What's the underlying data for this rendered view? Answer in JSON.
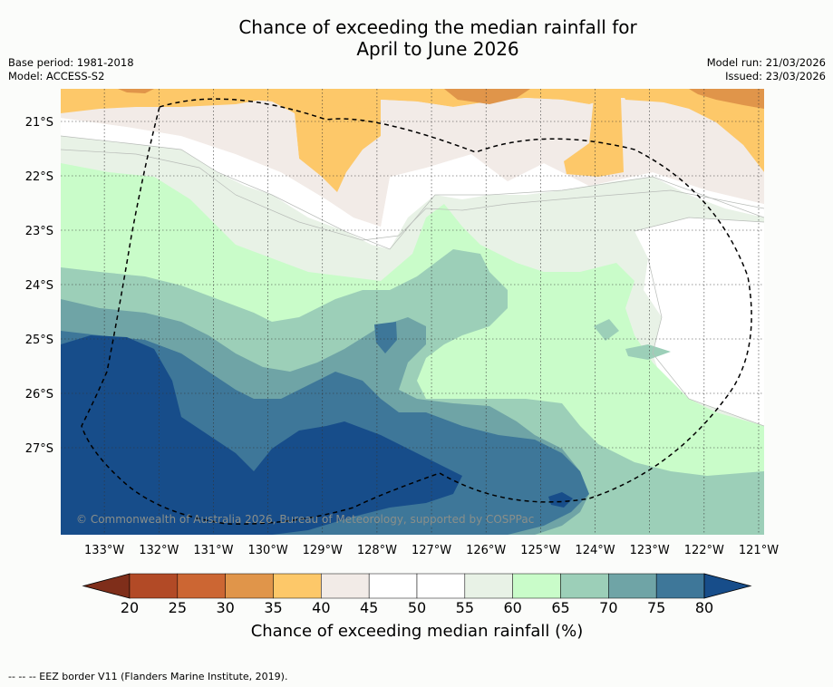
{
  "title": {
    "line1": "Chance of exceeding the median rainfall for",
    "line2": "April to June 2026"
  },
  "meta_left": {
    "base_period": "Base period: 1981-2018",
    "model": "Model: ACCESS-S2"
  },
  "meta_right": {
    "model_run": "Model run: 21/03/2026",
    "issued": "Issued: 23/03/2026"
  },
  "map": {
    "lon_labels": [
      "133°W",
      "132°W",
      "131°W",
      "130°W",
      "129°W",
      "128°W",
      "127°W",
      "126°W",
      "125°W",
      "124°W",
      "123°W",
      "122°W",
      "121°W"
    ],
    "lat_labels": [
      "21°S",
      "22°S",
      "23°S",
      "24°S",
      "25°S",
      "26°S",
      "27°S"
    ],
    "lon_range": [
      -133.8,
      -120.9
    ],
    "lat_range": [
      -28.6,
      -20.4
    ],
    "copyright": "© Commonwealth of Australia 2026, Bureau of Meteorology, supported by COSPPac"
  },
  "colorbar": {
    "ticks": [
      "20",
      "25",
      "30",
      "35",
      "40",
      "45",
      "50",
      "55",
      "60",
      "65",
      "70",
      "75",
      "80"
    ],
    "colors": [
      "#7f2e1a",
      "#b24a26",
      "#cc6633",
      "#e0954a",
      "#fdc869",
      "#f2ebe7",
      "#ffffff",
      "#ffffff",
      "#e8f2e6",
      "#c9fcc9",
      "#9ccfb8",
      "#6fa4a6",
      "#3e7799",
      "#174d8a"
    ],
    "title": "Chance of exceeding median rainfall (%)"
  },
  "footer": {
    "legend": "--  --  -- EEZ border V11 (Flanders Marine Institute, 2019)."
  }
}
